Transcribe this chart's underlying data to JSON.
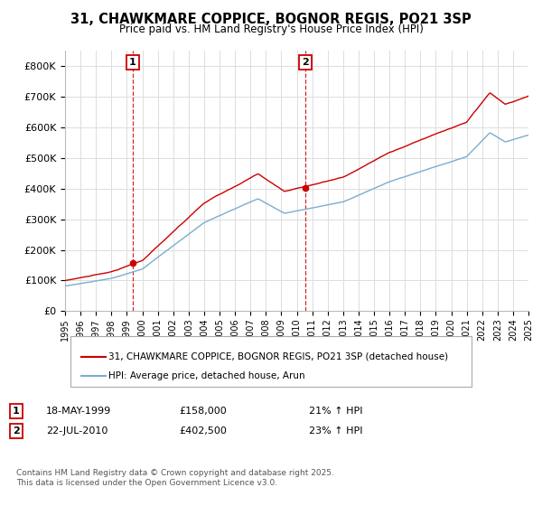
{
  "title": "31, CHAWKMARE COPPICE, BOGNOR REGIS, PO21 3SP",
  "subtitle": "Price paid vs. HM Land Registry's House Price Index (HPI)",
  "x_start_year": 1995,
  "x_end_year": 2025,
  "ylim": [
    0,
    850000
  ],
  "yticks": [
    0,
    100000,
    200000,
    300000,
    400000,
    500000,
    600000,
    700000,
    800000
  ],
  "sale1_year": 1999.38,
  "sale1_price": 158000,
  "sale2_year": 2010.55,
  "sale2_price": 402500,
  "legend_red": "31, CHAWKMARE COPPICE, BOGNOR REGIS, PO21 3SP (detached house)",
  "legend_blue": "HPI: Average price, detached house, Arun",
  "note1_label": "1",
  "note1_date": "18-MAY-1999",
  "note1_price": "£158,000",
  "note1_info": "21% ↑ HPI",
  "note2_label": "2",
  "note2_date": "22-JUL-2010",
  "note2_price": "£402,500",
  "note2_info": "23% ↑ HPI",
  "footer": "Contains HM Land Registry data © Crown copyright and database right 2025.\nThis data is licensed under the Open Government Licence v3.0.",
  "red_color": "#cc0000",
  "blue_color": "#7aadcf",
  "bg_color": "#ffffff",
  "grid_color": "#dddddd"
}
